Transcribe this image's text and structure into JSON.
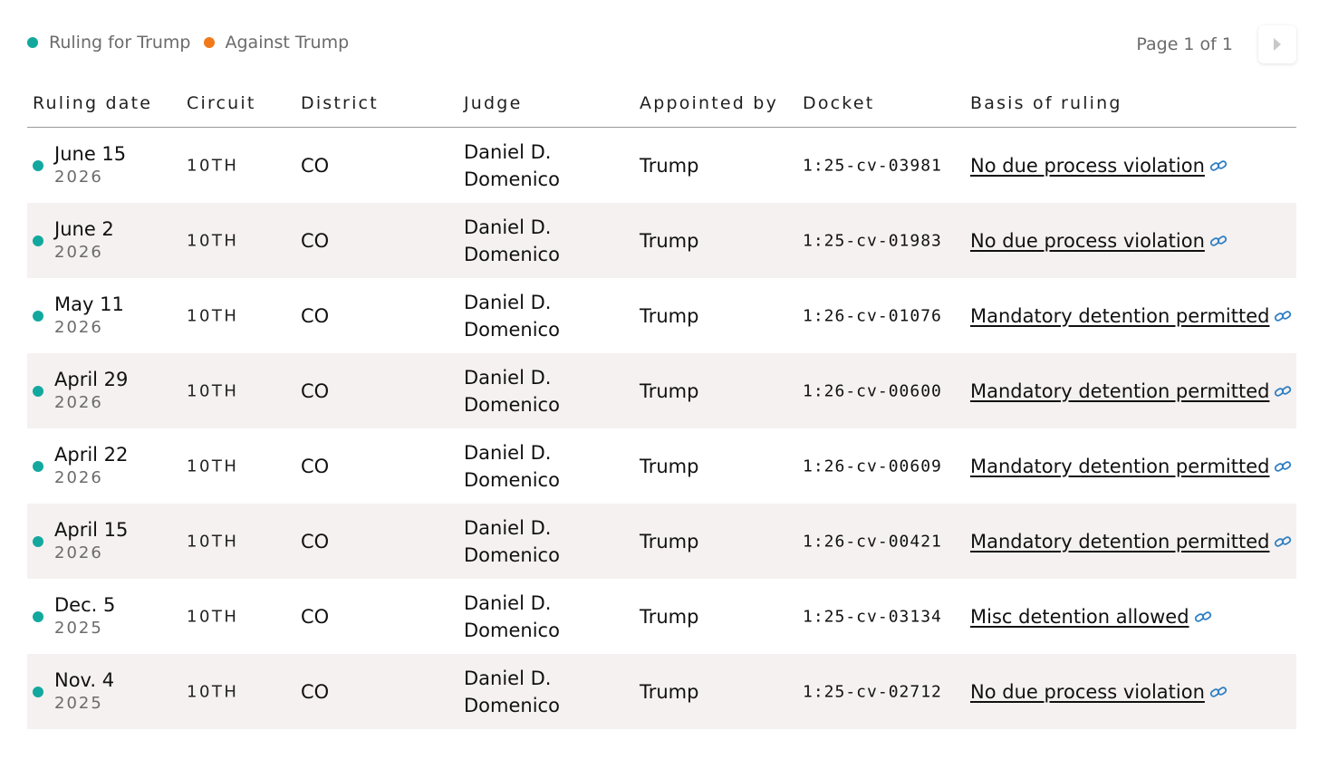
{
  "legend": {
    "for_label": "Ruling for Trump",
    "against_label": "Against Trump",
    "for_color": "#13a89e",
    "against_color": "#f07a1a"
  },
  "pagination": {
    "label": "Page 1 of 1",
    "next_icon": "triangle-right-icon"
  },
  "table": {
    "headers": {
      "date": "Ruling date",
      "circuit": "Circuit",
      "district": "District",
      "judge": "Judge",
      "appointed": "Appointed by",
      "docket": "Docket",
      "basis": "Basis of ruling"
    },
    "rows": [
      {
        "status": "for",
        "date": "June 15",
        "year": "2026",
        "circuit": "10TH",
        "district": "CO",
        "judge": "Daniel D. Domenico",
        "appointed": "Trump",
        "docket": "1:25-cv-03981",
        "basis": "No due process violation"
      },
      {
        "status": "for",
        "date": "June 2",
        "year": "2026",
        "circuit": "10TH",
        "district": "CO",
        "judge": "Daniel D. Domenico",
        "appointed": "Trump",
        "docket": "1:25-cv-01983",
        "basis": "No due process violation"
      },
      {
        "status": "for",
        "date": "May 11",
        "year": "2026",
        "circuit": "10TH",
        "district": "CO",
        "judge": "Daniel D. Domenico",
        "appointed": "Trump",
        "docket": "1:26-cv-01076",
        "basis": "Mandatory detention permitted"
      },
      {
        "status": "for",
        "date": "April 29",
        "year": "2026",
        "circuit": "10TH",
        "district": "CO",
        "judge": "Daniel D. Domenico",
        "appointed": "Trump",
        "docket": "1:26-cv-00600",
        "basis": "Mandatory detention permitted"
      },
      {
        "status": "for",
        "date": "April 22",
        "year": "2026",
        "circuit": "10TH",
        "district": "CO",
        "judge": "Daniel D. Domenico",
        "appointed": "Trump",
        "docket": "1:26-cv-00609",
        "basis": "Mandatory detention permitted"
      },
      {
        "status": "for",
        "date": "April 15",
        "year": "2026",
        "circuit": "10TH",
        "district": "CO",
        "judge": "Daniel D. Domenico",
        "appointed": "Trump",
        "docket": "1:26-cv-00421",
        "basis": "Mandatory detention permitted"
      },
      {
        "status": "for",
        "date": "Dec. 5",
        "year": "2025",
        "circuit": "10TH",
        "district": "CO",
        "judge": "Daniel D. Domenico",
        "appointed": "Trump",
        "docket": "1:25-cv-03134",
        "basis": "Misc detention allowed"
      },
      {
        "status": "for",
        "date": "Nov. 4",
        "year": "2025",
        "circuit": "10TH",
        "district": "CO",
        "judge": "Daniel D. Domenico",
        "appointed": "Trump",
        "docket": "1:25-cv-02712",
        "basis": "No due process violation"
      }
    ],
    "link_icon": "link-icon",
    "link_color": "#2f7fc4"
  }
}
